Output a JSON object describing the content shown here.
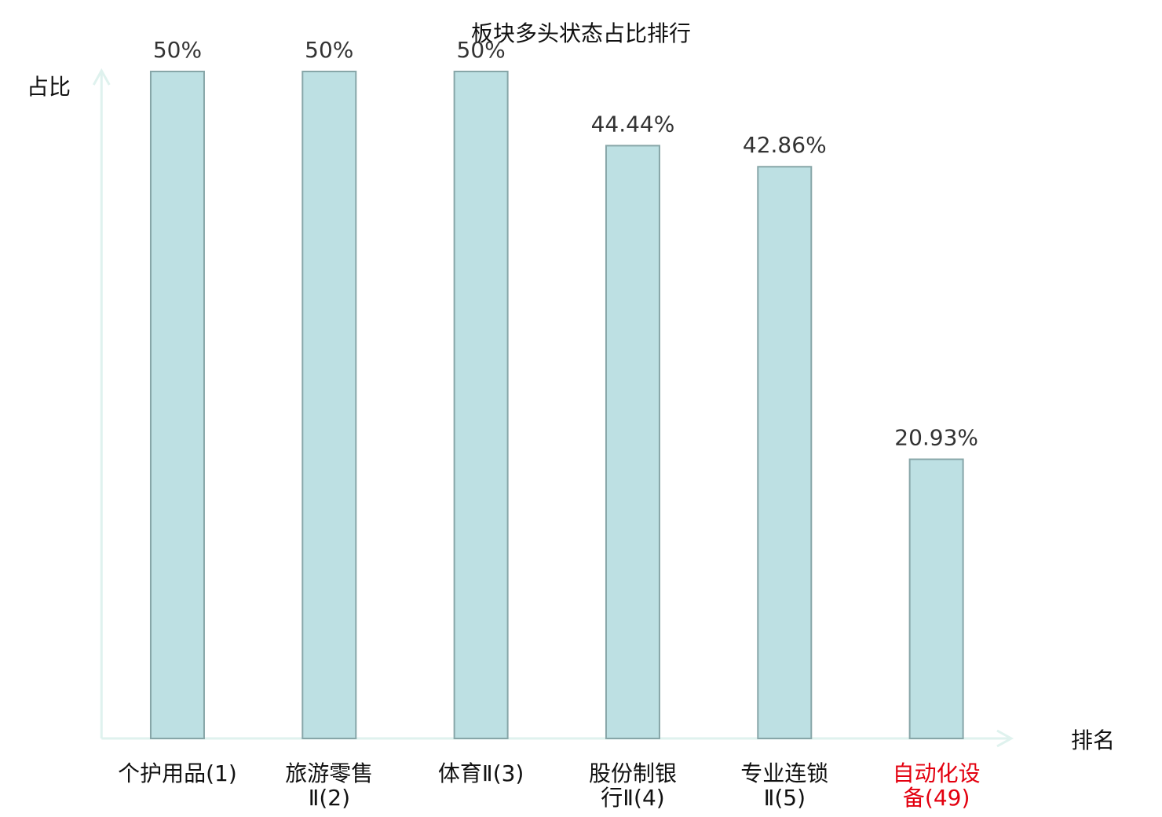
{
  "chart_data": {
    "type": "bar",
    "title": "板块多头状态占比排行",
    "y_label": "占比",
    "x_label": "排名",
    "categories": [
      "个护用品(1)",
      "旅游零售\nⅡ(2)",
      "体育Ⅱ(3)",
      "股份制银\n行Ⅱ(4)",
      "专业连锁\nⅡ(5)",
      "自动化设\n备(49)"
    ],
    "values": [
      50,
      50,
      50,
      44.44,
      42.86,
      20.93
    ],
    "value_labels": [
      "50%",
      "50%",
      "50%",
      "44.44%",
      "42.86%",
      "20.93%"
    ],
    "color": "#bde0e3",
    "edge_color": "#87a6a8",
    "label_colors": [
      "#111111",
      "#111111",
      "#111111",
      "#111111",
      "#111111",
      "#e3000f"
    ],
    "axis_color": "#dff2ee",
    "ylim": [
      0,
      50
    ]
  }
}
